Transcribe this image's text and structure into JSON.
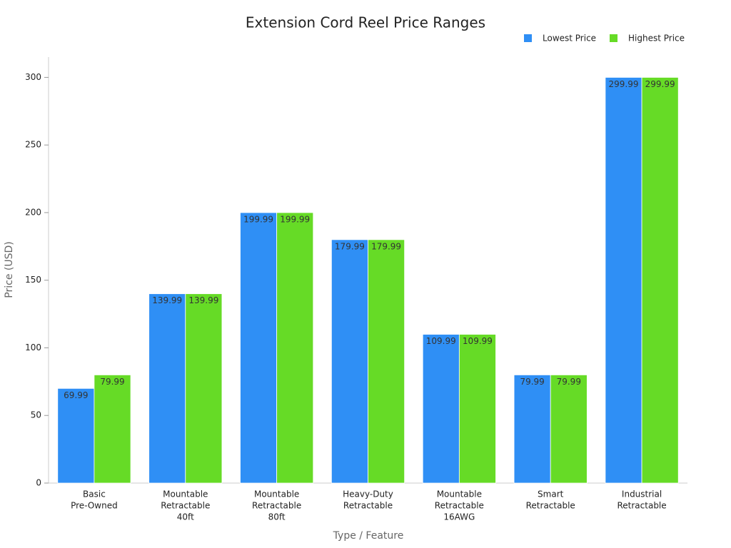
{
  "chart_data": {
    "type": "bar",
    "title": "Extension Cord Reel Price Ranges",
    "x_label": "Type / Feature",
    "y_label": "Price (USD)",
    "categories": [
      [
        "Basic",
        "Pre-Owned"
      ],
      [
        "Mountable",
        "Retractable",
        "40ft"
      ],
      [
        "Mountable",
        "Retractable",
        "80ft"
      ],
      [
        "Heavy-Duty",
        "Retractable"
      ],
      [
        "Mountable",
        "Retractable",
        "16AWG"
      ],
      [
        "Smart",
        "Retractable"
      ],
      [
        "Industrial",
        "Retractable"
      ]
    ],
    "series": [
      {
        "name": "Lowest Price",
        "color": "#2f8ff5",
        "values": [
          69.99,
          139.99,
          199.99,
          179.99,
          109.99,
          79.99,
          299.99
        ]
      },
      {
        "name": "Highest Price",
        "color": "#66db26",
        "values": [
          79.99,
          139.99,
          199.99,
          179.99,
          109.99,
          79.99,
          299.99
        ]
      }
    ],
    "ylim": [
      0,
      315
    ],
    "yticks": [
      0,
      50,
      100,
      150,
      200,
      250,
      300
    ],
    "grid": false,
    "legend": "top-right"
  }
}
